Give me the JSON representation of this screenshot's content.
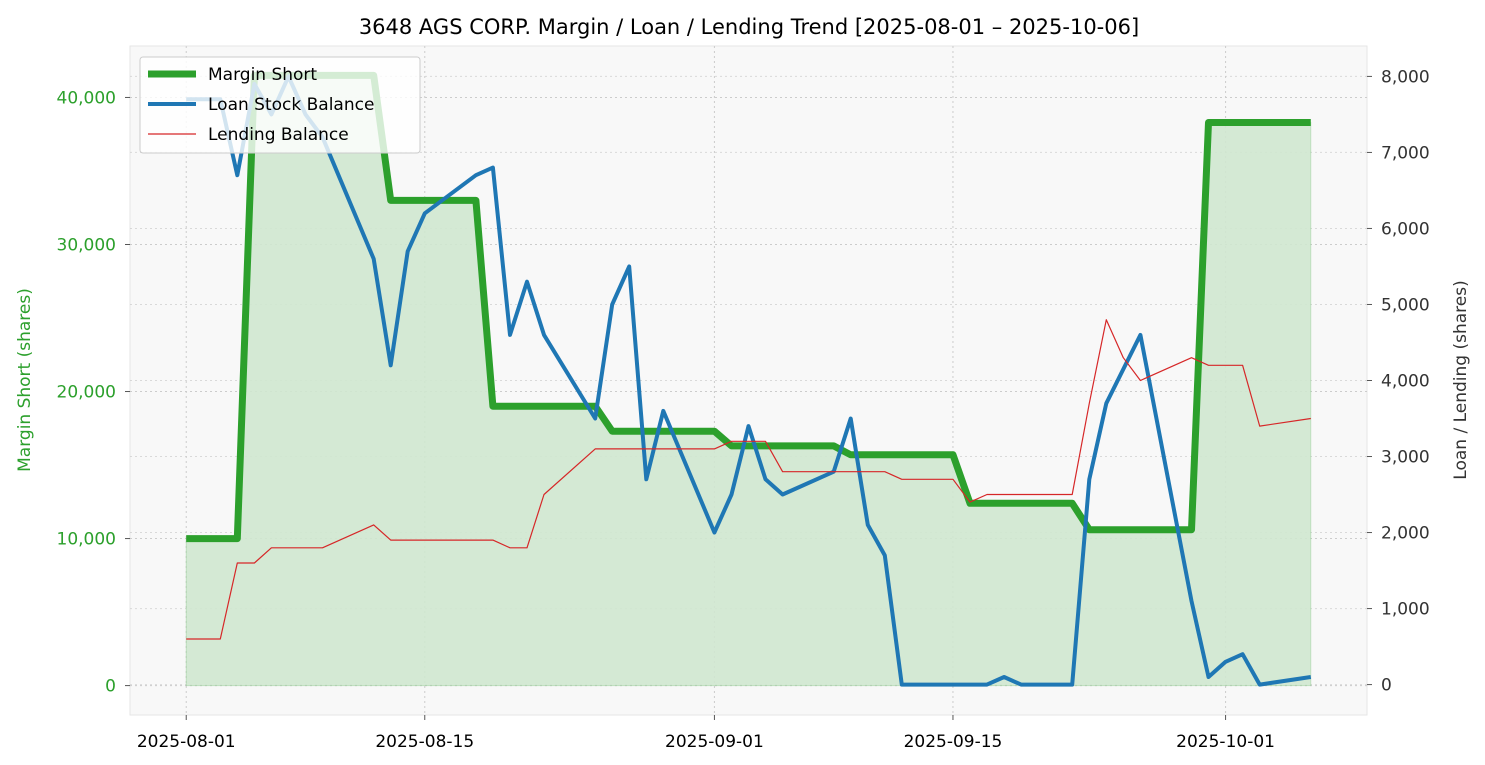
{
  "chart_data": {
    "type": "line",
    "title": "3648 AGS CORP. Margin / Loan / Lending Trend [2025-08-01 – 2025-10-06]",
    "ylabel_left": "Margin Short (shares)",
    "ylabel_right": "Loan / Lending (shares)",
    "xlim": [
      -3.3,
      69.3
    ],
    "ylim_left": [
      -2000,
      43500
    ],
    "ylim_right": [
      -400,
      8400
    ],
    "x_ticks": [
      {
        "day": 0,
        "label": "2025-08-01"
      },
      {
        "day": 14,
        "label": "2025-08-15"
      },
      {
        "day": 31,
        "label": "2025-09-01"
      },
      {
        "day": 45,
        "label": "2025-09-15"
      },
      {
        "day": 61,
        "label": "2025-10-01"
      }
    ],
    "y_ticks_left": [
      {
        "value": 0,
        "label": "0"
      },
      {
        "value": 10000,
        "label": "10,000"
      },
      {
        "value": 20000,
        "label": "20,000"
      },
      {
        "value": 30000,
        "label": "30,000"
      },
      {
        "value": 40000,
        "label": "40,000"
      }
    ],
    "y_ticks_right": [
      {
        "value": 0,
        "label": "0"
      },
      {
        "value": 1000,
        "label": "1,000"
      },
      {
        "value": 2000,
        "label": "2,000"
      },
      {
        "value": 3000,
        "label": "3,000"
      },
      {
        "value": 4000,
        "label": "4,000"
      },
      {
        "value": 5000,
        "label": "5,000"
      },
      {
        "value": 6000,
        "label": "6,000"
      },
      {
        "value": 7000,
        "label": "7,000"
      },
      {
        "value": 8000,
        "label": "8,000"
      }
    ],
    "legend": [
      "Margin Short",
      "Loan Stock Balance",
      "Lending Balance"
    ],
    "legend_position": "top-left",
    "grid": true,
    "colors": {
      "margin": "#2ca02c",
      "margin_fill": "#cfe7cf",
      "loan": "#1f77b4",
      "lending": "#d62728",
      "plot_bg": "#f8f8f8",
      "grid": "#cccccc",
      "axis_text": "#333333"
    },
    "series": [
      {
        "name": "Margin Short",
        "axis": "left",
        "x": [
          0,
          3,
          4,
          5,
          6,
          7,
          8,
          11,
          12,
          13,
          14,
          17,
          18,
          19,
          21,
          24,
          25,
          26,
          28,
          31,
          32,
          33,
          35,
          38,
          39,
          40,
          42,
          45,
          46,
          47,
          49,
          52,
          53,
          54,
          56,
          59,
          60,
          61,
          62,
          63,
          66
        ],
        "y": [
          10000,
          10000,
          41500,
          41500,
          41500,
          41500,
          41500,
          41500,
          33000,
          33000,
          33000,
          33000,
          19000,
          19000,
          19000,
          19000,
          17300,
          17300,
          17300,
          17300,
          16300,
          16300,
          16300,
          16300,
          15700,
          15700,
          15700,
          15700,
          12400,
          12400,
          12400,
          12400,
          10600,
          10600,
          10600,
          10600,
          38300,
          38300,
          38300,
          38300,
          38300
        ]
      },
      {
        "name": "Loan Stock Balance",
        "axis": "right",
        "x": [
          0,
          1,
          2,
          3,
          4,
          5,
          6,
          7,
          8,
          11,
          12,
          13,
          14,
          17,
          18,
          19,
          20,
          21,
          24,
          25,
          26,
          27,
          28,
          31,
          32,
          33,
          34,
          35,
          38,
          39,
          40,
          41,
          42,
          45,
          46,
          47,
          48,
          49,
          52,
          53,
          54,
          56,
          59,
          60,
          61,
          62,
          63,
          66
        ],
        "y": [
          7700,
          7700,
          7700,
          6700,
          7900,
          7500,
          8000,
          7500,
          7200,
          5600,
          4200,
          5700,
          6200,
          6700,
          6800,
          4600,
          5300,
          4600,
          3500,
          5000,
          5500,
          2700,
          3600,
          2000,
          2500,
          3400,
          2700,
          2500,
          2800,
          3500,
          2100,
          1700,
          0,
          0,
          0,
          0,
          100,
          0,
          0,
          2700,
          3700,
          4600,
          1100,
          100,
          300,
          400,
          0,
          100
        ]
      },
      {
        "name": "Lending Balance",
        "axis": "right",
        "x": [
          0,
          1,
          2,
          3,
          4,
          5,
          6,
          7,
          8,
          11,
          12,
          13,
          14,
          17,
          18,
          19,
          20,
          21,
          24,
          25,
          26,
          27,
          28,
          31,
          32,
          33,
          34,
          35,
          38,
          39,
          40,
          41,
          42,
          45,
          46,
          47,
          48,
          49,
          52,
          53,
          54,
          55,
          56,
          59,
          60,
          61,
          62,
          63,
          66
        ],
        "y": [
          600,
          600,
          600,
          1600,
          1600,
          1800,
          1800,
          1800,
          1800,
          2100,
          1900,
          1900,
          1900,
          1900,
          1900,
          1800,
          1800,
          2500,
          3100,
          3100,
          3100,
          3100,
          3100,
          3100,
          3200,
          3200,
          3200,
          2800,
          2800,
          2800,
          2800,
          2800,
          2700,
          2700,
          2400,
          2500,
          2500,
          2500,
          2500,
          3700,
          4800,
          4300,
          4000,
          4300,
          4200,
          4200,
          4200,
          3400,
          3500
        ]
      }
    ]
  }
}
